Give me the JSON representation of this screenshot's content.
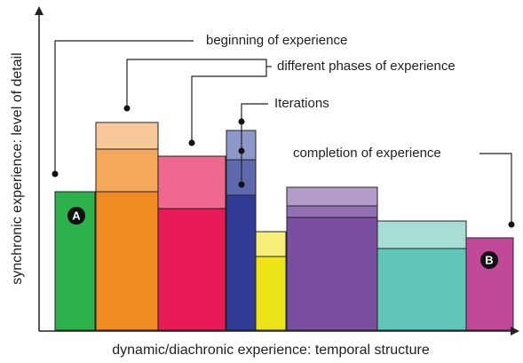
{
  "axes": {
    "y_label": "synchronic experience: level of detail",
    "x_label": "dynamic/diachronic experience: temporal structure"
  },
  "annotations": {
    "beginning": "beginning of experience",
    "phases": "different phases of experience",
    "iterations": "Iterations",
    "completion": "completion of experience"
  },
  "badges": {
    "start": "A",
    "end": "B"
  }
}
